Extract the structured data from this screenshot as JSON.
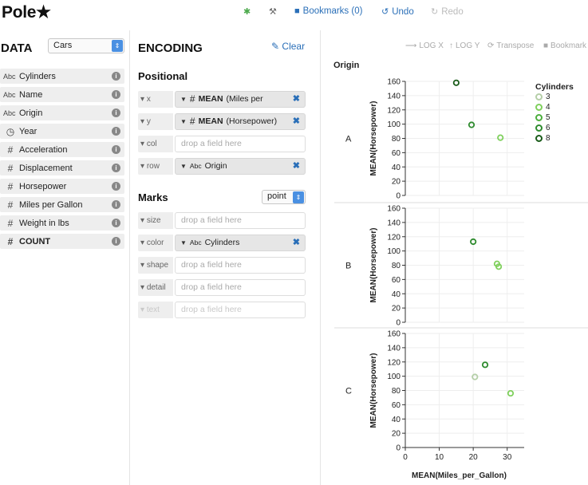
{
  "header": {
    "logo": "Pole★",
    "bug_icon": "bug-icon",
    "wrench_icon": "wrench-icon",
    "bookmarks_label": "Bookmarks (0)",
    "undo_label": "Undo",
    "redo_label": "Redo"
  },
  "data_panel": {
    "title": "DATA",
    "dataset": "Cars",
    "fields": [
      {
        "type": "Abc",
        "name": "Cylinders"
      },
      {
        "type": "Abc",
        "name": "Name"
      },
      {
        "type": "Abc",
        "name": "Origin"
      },
      {
        "type": "time",
        "name": "Year"
      },
      {
        "type": "#",
        "name": "Acceleration"
      },
      {
        "type": "#",
        "name": "Displacement"
      },
      {
        "type": "#",
        "name": "Horsepower"
      },
      {
        "type": "#",
        "name": "Miles per Gallon"
      },
      {
        "type": "#",
        "name": "Weight in lbs"
      },
      {
        "type": "#",
        "name": "COUNT"
      }
    ]
  },
  "encoding": {
    "title": "ENCODING",
    "clear_label": "Clear",
    "positional_title": "Positional",
    "marks_title": "Marks",
    "mark_type": "point",
    "drop_placeholder": "drop a field here",
    "shelves": {
      "x": {
        "label": "x",
        "agg": "MEAN",
        "field": "(Miles per"
      },
      "y": {
        "label": "y",
        "agg": "MEAN",
        "field": "(Horsepower)"
      },
      "col": {
        "label": "col"
      },
      "row": {
        "label": "row",
        "field": "Origin"
      },
      "size": {
        "label": "size"
      },
      "color": {
        "label": "color",
        "field": "Cylinders"
      },
      "shape": {
        "label": "shape"
      },
      "detail": {
        "label": "detail"
      },
      "text": {
        "label": "text"
      }
    }
  },
  "vis": {
    "toolbar": {
      "log_x": "LOG X",
      "log_y": "LOG Y",
      "transpose": "Transpose",
      "bookmark": "Bookmark"
    }
  },
  "chart_data": {
    "type": "scatter",
    "facet_title": "Origin",
    "facet_field": "Origin",
    "xlabel": "MEAN(Miles_per_Gallon)",
    "ylabel": "MEAN(Horsepower)",
    "xlim": [
      0,
      35
    ],
    "ylim": [
      0,
      160
    ],
    "x_ticks": [
      0,
      10,
      20,
      30
    ],
    "y_ticks": [
      0,
      20,
      40,
      60,
      80,
      100,
      120,
      140,
      160
    ],
    "legend_title": "Cylinders",
    "legend": [
      {
        "label": "3",
        "color": "#b5cfa8"
      },
      {
        "label": "4",
        "color": "#7fd05c"
      },
      {
        "label": "5",
        "color": "#4cae3d"
      },
      {
        "label": "6",
        "color": "#2e8b2e"
      },
      {
        "label": "8",
        "color": "#1a5c1a"
      }
    ],
    "facets": [
      {
        "label": "A",
        "points": [
          {
            "x": 15,
            "y": 158,
            "cyl": "8"
          },
          {
            "x": 19.5,
            "y": 99,
            "cyl": "6"
          },
          {
            "x": 28,
            "y": 81,
            "cyl": "4"
          }
        ]
      },
      {
        "label": "B",
        "points": [
          {
            "x": 20,
            "y": 113,
            "cyl": "6"
          },
          {
            "x": 27,
            "y": 82,
            "cyl": "4"
          },
          {
            "x": 27.5,
            "y": 78,
            "cyl": "4"
          }
        ]
      },
      {
        "label": "C",
        "points": [
          {
            "x": 23.5,
            "y": 116,
            "cyl": "6"
          },
          {
            "x": 20.5,
            "y": 99,
            "cyl": "3"
          },
          {
            "x": 31,
            "y": 76,
            "cyl": "4"
          }
        ]
      }
    ]
  }
}
